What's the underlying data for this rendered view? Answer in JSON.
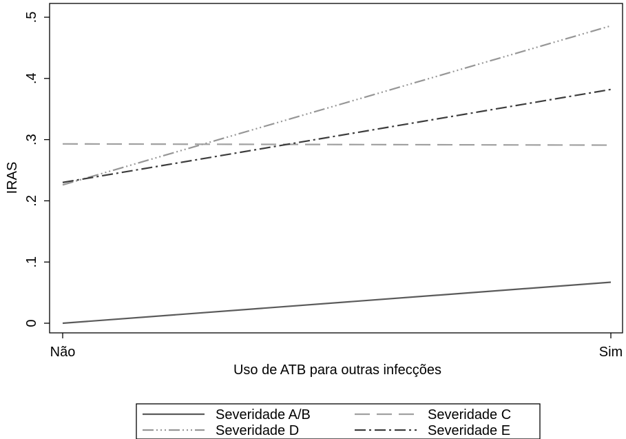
{
  "chart_data": {
    "type": "line",
    "x": [
      "Não",
      "Sim"
    ],
    "xlabel": "Uso de ATB para outras infecções",
    "ylabel": "IRAS",
    "ylim": [
      0,
      0.5
    ],
    "yticks": [
      0,
      0.1,
      0.2,
      0.3,
      0.4,
      0.5
    ],
    "ytick_labels": [
      "0",
      ".1",
      ".2",
      ".3",
      ".4",
      ".5"
    ],
    "grid": false,
    "legend_position": "bottom",
    "series": [
      {
        "name": "Severidade A/B",
        "values": [
          0.0,
          0.067
        ],
        "color": "#5a5a5a",
        "dash": "solid"
      },
      {
        "name": "Severidade C",
        "values": [
          0.293,
          0.291
        ],
        "color": "#a0a0a0",
        "dash": "long-dash"
      },
      {
        "name": "Severidade D",
        "values": [
          0.226,
          0.486
        ],
        "color": "#969696",
        "dash": "dash-triple-dot"
      },
      {
        "name": "Severidade E",
        "values": [
          0.23,
          0.382
        ],
        "color": "#3c3c3c",
        "dash": "dash-dot"
      }
    ]
  }
}
